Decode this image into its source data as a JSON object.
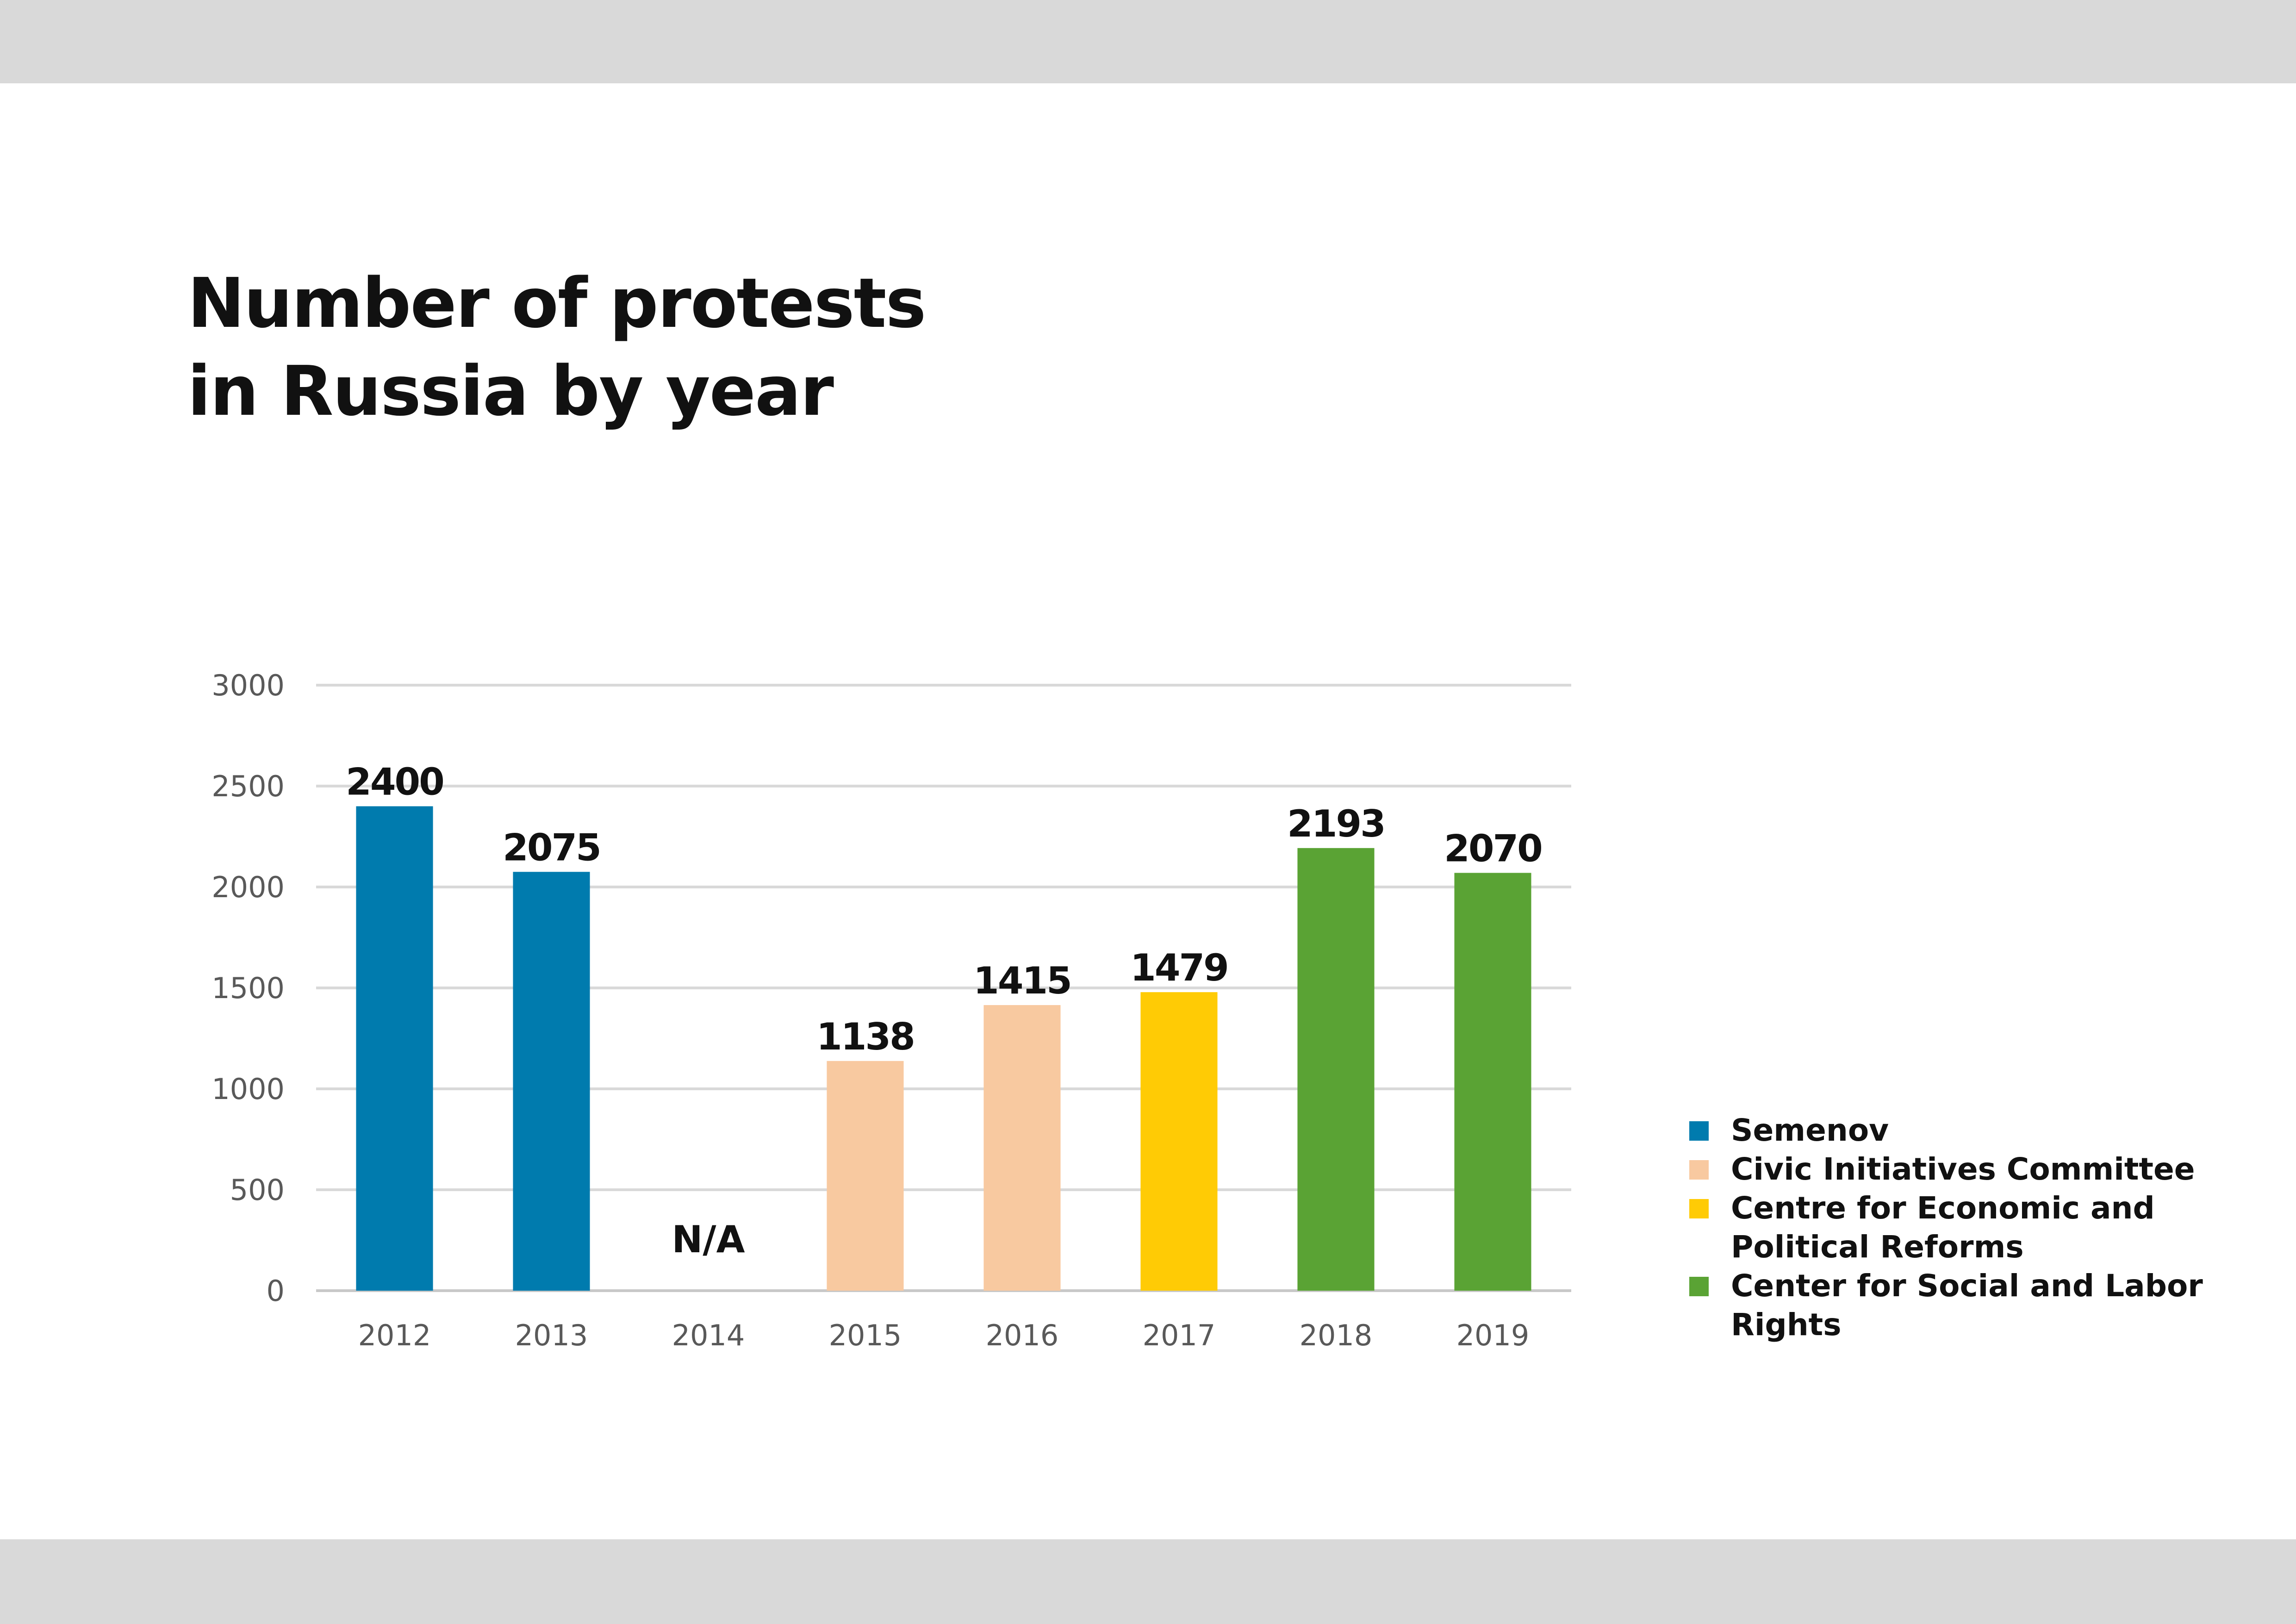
{
  "chart_data": {
    "type": "bar",
    "title_lines": [
      "Number of protests",
      "in Russia by year"
    ],
    "categories": [
      "2012",
      "2013",
      "2014",
      "2015",
      "2016",
      "2017",
      "2018",
      "2019"
    ],
    "values": [
      2400,
      2075,
      null,
      1138,
      1415,
      1479,
      2193,
      2070
    ],
    "value_labels": [
      "2400",
      "2075",
      "N/A",
      "1138",
      "1415",
      "1479",
      "2193",
      "2070"
    ],
    "bar_sources": [
      0,
      0,
      null,
      1,
      1,
      2,
      3,
      3
    ],
    "ylim": [
      0,
      3000
    ],
    "yticks": [
      "0",
      "500",
      "1000",
      "1500",
      "2000",
      "2500",
      "3000"
    ],
    "grid": true,
    "legend_position": "right",
    "sources": [
      {
        "name": "Semenov",
        "color": "#007bae"
      },
      {
        "name": "Civic Initiatives Committee",
        "color": "#f8c9a0"
      },
      {
        "name": "Centre for Economic and Political Reforms",
        "color": "#ffcb05"
      },
      {
        "name": "Center for Social and Labor Rights",
        "color": "#5aa334"
      }
    ]
  }
}
